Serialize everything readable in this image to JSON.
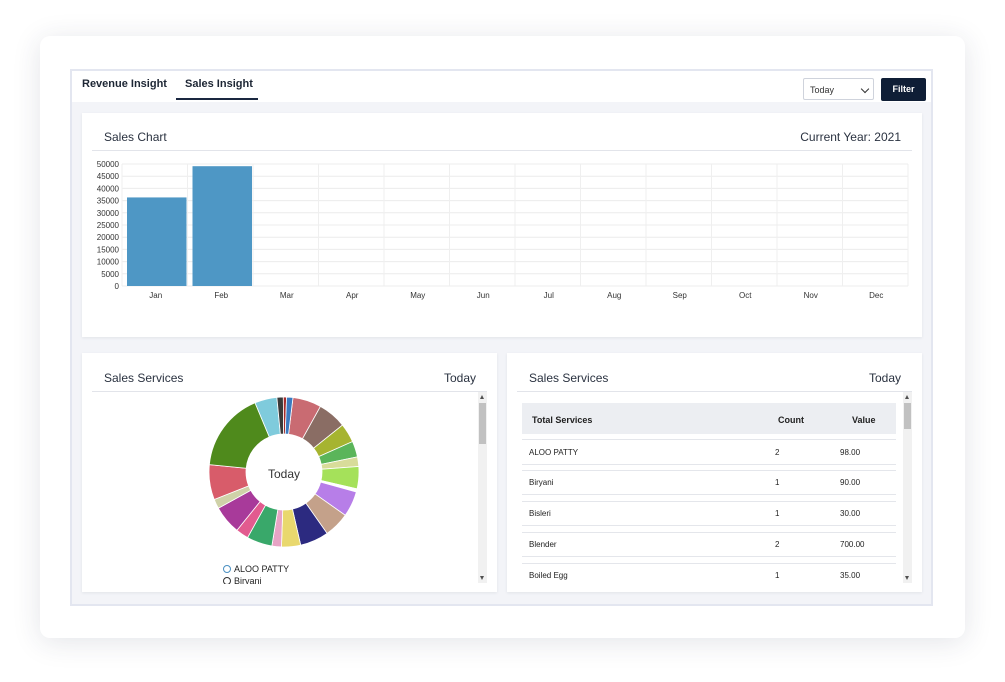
{
  "tabs": [
    {
      "label": "Revenue Insight",
      "active": false
    },
    {
      "label": "Sales Insight",
      "active": true
    }
  ],
  "period_select": {
    "value": "Today"
  },
  "filter_button": {
    "label": "Filter"
  },
  "sales_chart_card": {
    "title": "Sales Chart",
    "right": "Current Year: 2021"
  },
  "chart_data": {
    "type": "bar",
    "categories": [
      "Jan",
      "Feb",
      "Mar",
      "Apr",
      "May",
      "Jun",
      "Jul",
      "Aug",
      "Sep",
      "Oct",
      "Nov",
      "Dec"
    ],
    "values": [
      36300,
      49100,
      0,
      0,
      0,
      0,
      0,
      0,
      0,
      0,
      0,
      0
    ],
    "yticks": [
      0,
      5000,
      10000,
      15000,
      20000,
      25000,
      30000,
      35000,
      40000,
      45000,
      50000
    ],
    "ylim": [
      0,
      50000
    ],
    "grid": true,
    "bar_color": "#4e97c5",
    "title": "",
    "xlabel": "",
    "ylabel": ""
  },
  "services_pie_card": {
    "title": "Sales Services",
    "right": "Today",
    "center_label": "Today",
    "legend": [
      "ALOO PATTY",
      "Biryani"
    ],
    "slice_colors": [
      "#c96b72",
      "#8a6d64",
      "#a6b430",
      "#5bb55a",
      "#d8dc9a",
      "#a5e15a",
      "#ffffff",
      "#b77ee8",
      "#c4a18a",
      "#2c2a80",
      "#e9d86e",
      "#e7a4c5",
      "#39a86a",
      "#e25b8f",
      "#a83a9a",
      "#cfd1a8",
      "#d85c6a",
      "#4f8a1c",
      "#7fcbdc",
      "#3a3a3a",
      "#a52a2a",
      "#3a7ac0"
    ]
  },
  "services_table_card": {
    "title": "Sales Services",
    "right": "Today",
    "columns": [
      "Total Services",
      "Count",
      "Value"
    ],
    "rows": [
      [
        "ALOO PATTY",
        "2",
        "98.00"
      ],
      [
        "Biryani",
        "1",
        "90.00"
      ],
      [
        "Bisleri",
        "1",
        "30.00"
      ],
      [
        "Blender",
        "2",
        "700.00"
      ],
      [
        "Boiled Egg",
        "1",
        "35.00"
      ]
    ]
  },
  "colors": {
    "accent_dark": "#0f1e36",
    "bar": "#4e97c5",
    "legend_ring": "#4a90c2"
  }
}
